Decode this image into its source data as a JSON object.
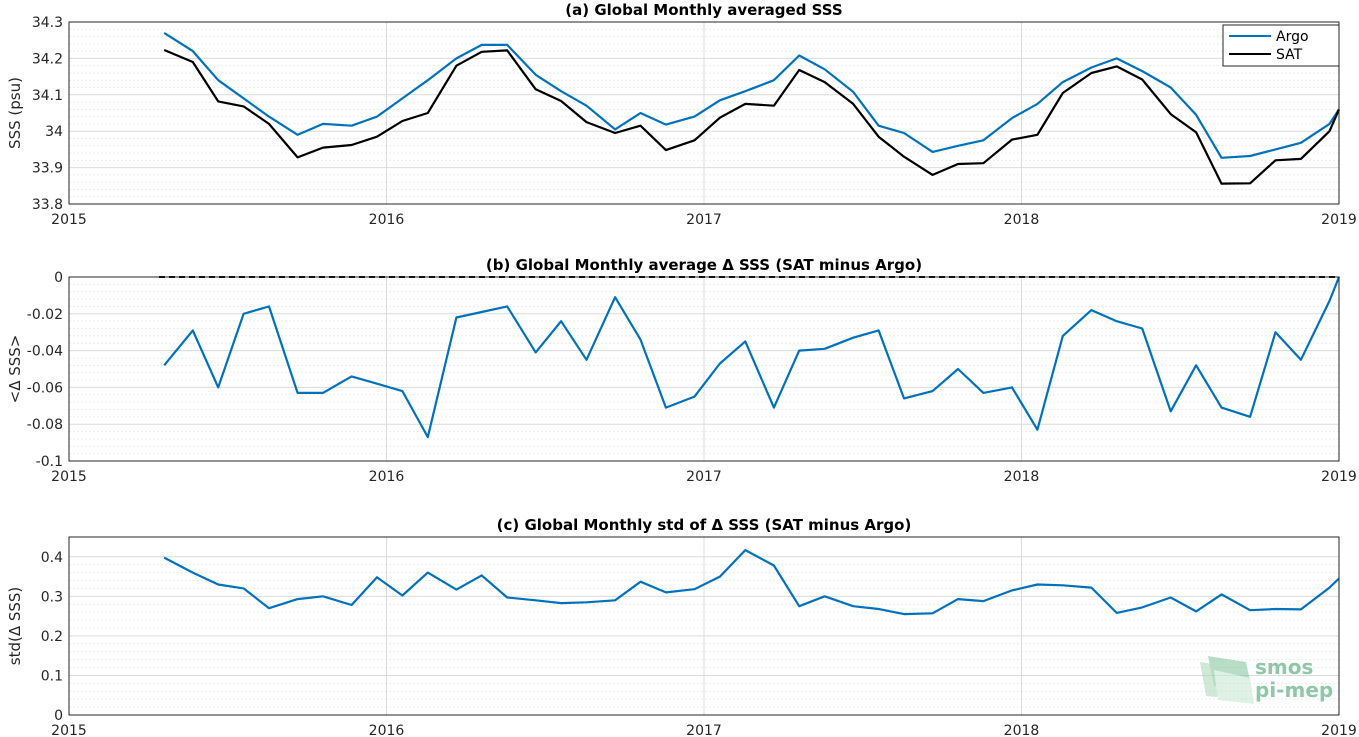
{
  "colors": {
    "argo": "#0072BD",
    "sat": "#000000",
    "zero_line": "#000000",
    "logo": "#8fc8a8"
  },
  "logo": {
    "line1": "smos",
    "line2": "pi-mep"
  },
  "chart_data": [
    {
      "type": "line",
      "title": "(a) Global Monthly averaged SSS",
      "ylabel": "SSS (psu)",
      "xlim": [
        2015,
        2019
      ],
      "ylim": [
        33.8,
        34.3
      ],
      "xticks": [
        2015,
        2016,
        2017,
        2018,
        2019
      ],
      "yticks": [
        33.8,
        33.9,
        34,
        34.1,
        34.2,
        34.3
      ],
      "ytick_labels": [
        "33.8",
        "33.9",
        "34",
        "34.1",
        "34.2",
        "34.3"
      ],
      "grid": true,
      "legend": "top-right",
      "x": [
        2015.3,
        2015.39,
        2015.47,
        2015.55,
        2015.63,
        2015.72,
        2015.8,
        2015.89,
        2015.97,
        2016.05,
        2016.13,
        2016.22,
        2016.3,
        2016.38,
        2016.47,
        2016.55,
        2016.63,
        2016.72,
        2016.8,
        2016.88,
        2016.97,
        2017.05,
        2017.13,
        2017.22,
        2017.3,
        2017.38,
        2017.47,
        2017.55,
        2017.63,
        2017.72,
        2017.8,
        2017.88,
        2017.97,
        2018.05,
        2018.13,
        2018.22,
        2018.3,
        2018.38,
        2018.47,
        2018.55,
        2018.63,
        2018.72,
        2018.8,
        2018.88,
        2018.97,
        2019.0
      ],
      "series": [
        {
          "name": "Argo",
          "color": "#0072BD",
          "values": [
            34.27,
            34.22,
            34.14,
            34.09,
            34.04,
            33.99,
            34.02,
            34.015,
            34.04,
            34.09,
            34.14,
            34.2,
            34.237,
            34.237,
            34.155,
            34.11,
            34.07,
            34.005,
            34.05,
            34.018,
            34.04,
            34.085,
            34.11,
            34.14,
            34.208,
            34.17,
            34.108,
            34.015,
            33.995,
            33.943,
            33.96,
            33.975,
            34.036,
            34.075,
            34.135,
            34.175,
            34.2,
            34.165,
            34.12,
            34.045,
            33.927,
            33.932,
            33.95,
            33.968,
            34.02,
            34.06
          ]
        },
        {
          "name": "SAT",
          "color": "#000000",
          "values": [
            34.223,
            34.19,
            34.082,
            34.068,
            34.02,
            33.928,
            33.955,
            33.962,
            33.985,
            34.028,
            34.05,
            34.18,
            34.218,
            34.222,
            34.115,
            34.083,
            34.025,
            33.995,
            34.015,
            33.948,
            33.975,
            34.037,
            34.075,
            34.07,
            34.168,
            34.135,
            34.075,
            33.985,
            33.93,
            33.88,
            33.91,
            33.912,
            33.977,
            33.99,
            34.105,
            34.16,
            34.178,
            34.142,
            34.047,
            33.997,
            33.856,
            33.857,
            33.92,
            33.924,
            34.0,
            34.06
          ]
        }
      ]
    },
    {
      "type": "line",
      "title": "(b) Global Monthly average Δ SSS (SAT minus Argo)",
      "ylabel": "<Δ SSS>",
      "xlim": [
        2015,
        2019
      ],
      "ylim": [
        -0.1,
        0
      ],
      "xticks": [
        2015,
        2016,
        2017,
        2018,
        2019
      ],
      "yticks": [
        -0.1,
        -0.08,
        -0.06,
        -0.04,
        -0.02,
        0
      ],
      "ytick_labels": [
        "-0.1",
        "-0.08",
        "-0.06",
        "-0.04",
        "-0.02",
        "0"
      ],
      "grid": true,
      "reference_line": 0,
      "x": [
        2015.3,
        2015.39,
        2015.47,
        2015.55,
        2015.63,
        2015.72,
        2015.8,
        2015.89,
        2015.97,
        2016.05,
        2016.13,
        2016.22,
        2016.3,
        2016.38,
        2016.47,
        2016.55,
        2016.63,
        2016.72,
        2016.8,
        2016.88,
        2016.97,
        2017.05,
        2017.13,
        2017.22,
        2017.3,
        2017.38,
        2017.47,
        2017.55,
        2017.63,
        2017.72,
        2017.8,
        2017.88,
        2017.97,
        2018.05,
        2018.13,
        2018.22,
        2018.3,
        2018.38,
        2018.47,
        2018.55,
        2018.63,
        2018.72,
        2018.8,
        2018.88,
        2018.97,
        2019.0
      ],
      "series": [
        {
          "name": "",
          "color": "#0072BD",
          "values": [
            -0.048,
            -0.029,
            -0.06,
            -0.02,
            -0.016,
            -0.063,
            -0.063,
            -0.054,
            -0.058,
            -0.062,
            -0.087,
            -0.022,
            -0.019,
            -0.016,
            -0.041,
            -0.024,
            -0.045,
            -0.011,
            -0.034,
            -0.071,
            -0.065,
            -0.047,
            -0.035,
            -0.071,
            -0.04,
            -0.039,
            -0.033,
            -0.029,
            -0.066,
            -0.062,
            -0.05,
            -0.063,
            -0.06,
            -0.083,
            -0.032,
            -0.018,
            -0.024,
            -0.028,
            -0.073,
            -0.048,
            -0.071,
            -0.076,
            -0.03,
            -0.045,
            -0.013,
            0.0
          ]
        }
      ]
    },
    {
      "type": "line",
      "title": "(c) Global Monthly std of Δ SSS (SAT minus Argo)",
      "ylabel": "std(Δ SSS)",
      "xlim": [
        2015,
        2019
      ],
      "ylim": [
        0,
        0.45
      ],
      "xticks": [
        2015,
        2016,
        2017,
        2018,
        2019
      ],
      "yticks": [
        0,
        0.1,
        0.2,
        0.3,
        0.4
      ],
      "ytick_labels": [
        "0",
        "0.1",
        "0.2",
        "0.3",
        "0.4"
      ],
      "grid": true,
      "x": [
        2015.3,
        2015.39,
        2015.47,
        2015.55,
        2015.63,
        2015.72,
        2015.8,
        2015.89,
        2015.97,
        2016.05,
        2016.13,
        2016.22,
        2016.3,
        2016.38,
        2016.47,
        2016.55,
        2016.63,
        2016.72,
        2016.8,
        2016.88,
        2016.97,
        2017.05,
        2017.13,
        2017.22,
        2017.3,
        2017.38,
        2017.47,
        2017.55,
        2017.63,
        2017.72,
        2017.8,
        2017.88,
        2017.97,
        2018.05,
        2018.13,
        2018.22,
        2018.3,
        2018.38,
        2018.47,
        2018.55,
        2018.63,
        2018.72,
        2018.8,
        2018.88,
        2018.97,
        2019.0
      ],
      "series": [
        {
          "name": "",
          "color": "#0072BD",
          "values": [
            0.398,
            0.36,
            0.33,
            0.32,
            0.27,
            0.293,
            0.3,
            0.278,
            0.348,
            0.302,
            0.36,
            0.317,
            0.353,
            0.297,
            0.29,
            0.283,
            0.285,
            0.29,
            0.337,
            0.31,
            0.318,
            0.35,
            0.417,
            0.378,
            0.275,
            0.3,
            0.275,
            0.268,
            0.255,
            0.257,
            0.293,
            0.288,
            0.315,
            0.33,
            0.328,
            0.322,
            0.258,
            0.272,
            0.297,
            0.262,
            0.305,
            0.265,
            0.268,
            0.267,
            0.322,
            0.345
          ]
        }
      ]
    }
  ]
}
